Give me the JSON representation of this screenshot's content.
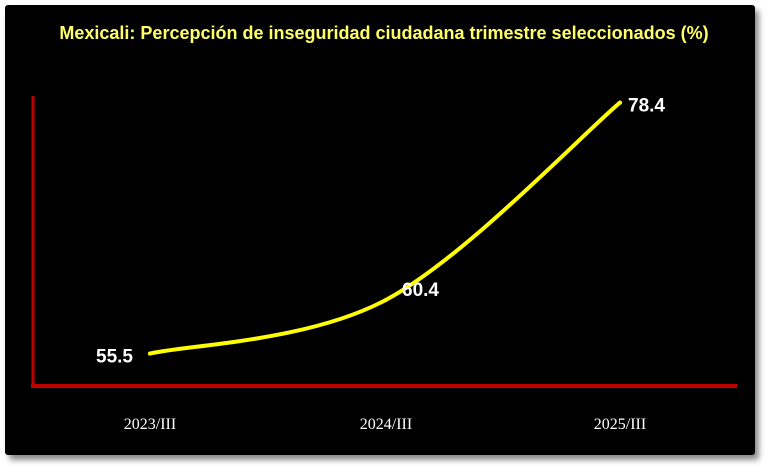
{
  "chart_data": {
    "type": "line",
    "title": "Mexicali: Percepción de inseguridad ciudadana trimestre seleccionados (%)",
    "categories": [
      "2023/III",
      "2024/III",
      "2025/III"
    ],
    "values": [
      55.5,
      60.4,
      78.4
    ],
    "data_labels": [
      "55.5",
      "60.4",
      "78.4"
    ],
    "ylim": [
      54,
      79
    ],
    "grid": false,
    "legend": "none",
    "colors": {
      "line": "#ffff00",
      "axis": "#c00000",
      "background": "#000000",
      "title": "#ffff66"
    }
  }
}
